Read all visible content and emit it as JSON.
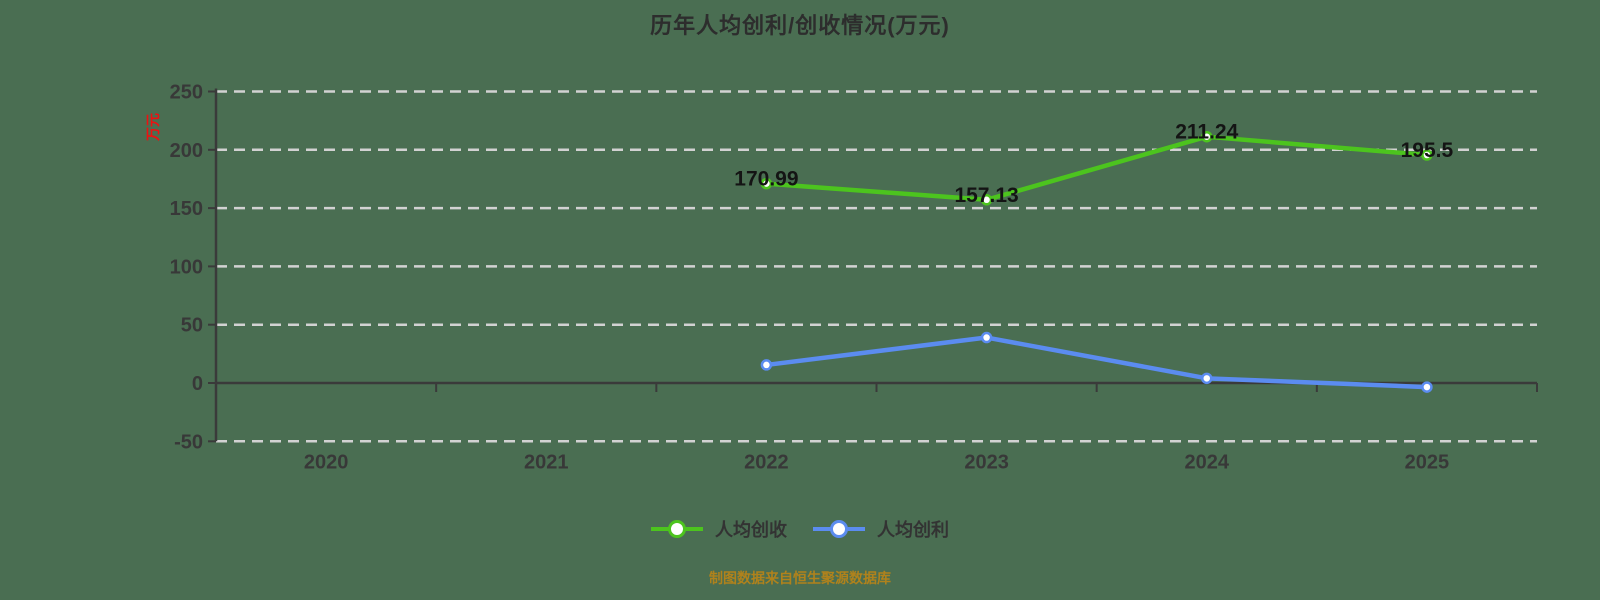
{
  "title": "历年人均创利/创收情况(万元)",
  "y_axis_name": "万元",
  "footer": "制图数据来自恒生聚源数据库",
  "colors": {
    "background": "#4a6e52",
    "gridline": "#d2d2d2",
    "axis": "#3a3a3a",
    "revenue_series": "#4cc41e",
    "profit_series": "#5b8cf0",
    "y_axis_name": "#ee1111",
    "footer_text": "#b0821c"
  },
  "chart_data": {
    "type": "line",
    "title": "历年人均创利/创收情况(万元)",
    "categories": [
      "2020",
      "2021",
      "2022",
      "2023",
      "2024",
      "2025"
    ],
    "yticks": [
      250,
      200,
      150,
      100,
      50,
      0,
      -50
    ],
    "ylim": [
      -50,
      250
    ],
    "xlabel": "",
    "ylabel": "万元",
    "grid": "horizontal dashed",
    "legend_position": "bottom",
    "series": [
      {
        "key": "per-capita-revenue",
        "name": "人均创收",
        "color": "#4cc41e",
        "values": [
          null,
          null,
          170.99,
          157.13,
          211.24,
          195.5
        ],
        "labels": [
          null,
          null,
          "170.99",
          "157.13",
          "211.24",
          "195.5"
        ]
      },
      {
        "key": "per-capita-profit",
        "name": "人均创利",
        "color": "#5b8cf0",
        "values": [
          null,
          null,
          15.5,
          39,
          4,
          -3.5
        ],
        "labels": [
          null,
          null,
          null,
          null,
          null,
          null
        ],
        "values_estimated": true
      }
    ]
  }
}
